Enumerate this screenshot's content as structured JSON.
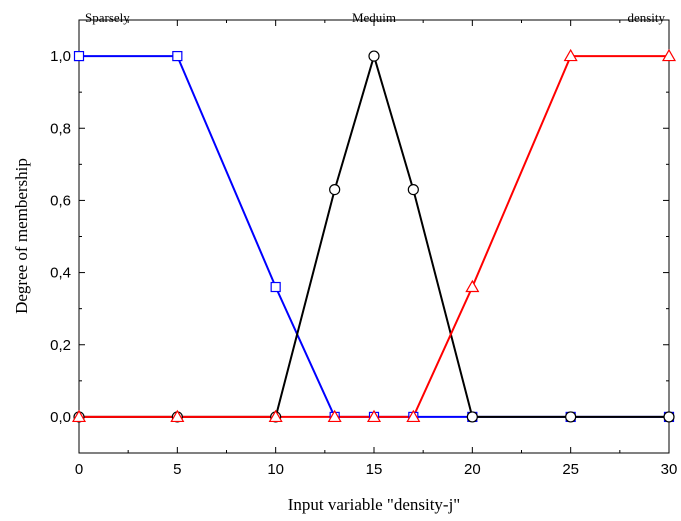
{
  "chart_data": {
    "type": "line",
    "xlabel": "Input variable \"density-j\"",
    "ylabel": "Degree of membership",
    "xlim": [
      0,
      30
    ],
    "ylim": [
      -0.1,
      1.1
    ],
    "x_ticks": [
      0,
      5,
      10,
      15,
      20,
      25,
      30
    ],
    "y_ticks": [
      {
        "value": 0.0,
        "label": "0,0"
      },
      {
        "value": 0.2,
        "label": "0,2"
      },
      {
        "value": 0.4,
        "label": "0,4"
      },
      {
        "value": 0.6,
        "label": "0,6"
      },
      {
        "value": 0.8,
        "label": "0,8"
      },
      {
        "value": 1.0,
        "label": "1,0"
      }
    ],
    "grid": false,
    "top_labels": [
      {
        "text": "Sparsely",
        "x": 0
      },
      {
        "text": "Meduim",
        "x": 15
      },
      {
        "text": "density",
        "x": 30
      }
    ],
    "series": [
      {
        "color": "#0000ff",
        "marker": "square",
        "points": [
          [
            0,
            1.0
          ],
          [
            5,
            1.0
          ],
          [
            10,
            0.36
          ],
          [
            13,
            0.0
          ],
          [
            15,
            0.0
          ],
          [
            17,
            0.0
          ],
          [
            20,
            0.0
          ],
          [
            25,
            0.0
          ],
          [
            30,
            0.0
          ]
        ]
      },
      {
        "color": "#000000",
        "marker": "circle",
        "points": [
          [
            0,
            0.0
          ],
          [
            5,
            0.0
          ],
          [
            10,
            0.0
          ],
          [
            13,
            0.63
          ],
          [
            15,
            1.0
          ],
          [
            17,
            0.63
          ],
          [
            20,
            0.0
          ],
          [
            25,
            0.0
          ],
          [
            30,
            0.0
          ]
        ]
      },
      {
        "color": "#ff0000",
        "marker": "triangle",
        "points": [
          [
            0,
            0.0
          ],
          [
            5,
            0.0
          ],
          [
            10,
            0.0
          ],
          [
            13,
            0.0
          ],
          [
            15,
            0.0
          ],
          [
            17,
            0.0
          ],
          [
            20,
            0.36
          ],
          [
            25,
            1.0
          ],
          [
            30,
            1.0
          ]
        ]
      }
    ]
  }
}
